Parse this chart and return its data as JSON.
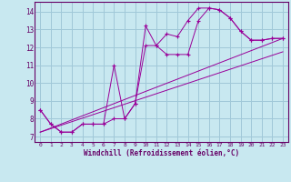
{
  "bg_color": "#c8e8f0",
  "grid_color": "#a0c8d8",
  "line_color": "#990099",
  "xlabel": "Windchill (Refroidissement éolien,°C)",
  "yticks": [
    7,
    8,
    9,
    10,
    11,
    12,
    13,
    14
  ],
  "xticks": [
    0,
    1,
    2,
    3,
    4,
    5,
    6,
    7,
    8,
    9,
    10,
    11,
    12,
    13,
    14,
    15,
    16,
    17,
    18,
    19,
    20,
    21,
    22,
    23
  ],
  "xlim": [
    -0.5,
    23.5
  ],
  "ylim": [
    6.7,
    14.55
  ],
  "lines_with_markers": [
    {
      "x": [
        0,
        1,
        2,
        3,
        4,
        5,
        6,
        7,
        8,
        9,
        10,
        11,
        12,
        13,
        14,
        15,
        16,
        17,
        18,
        19,
        20,
        21,
        22,
        23
      ],
      "y": [
        8.5,
        7.7,
        7.25,
        7.25,
        7.7,
        7.7,
        7.7,
        11.0,
        8.0,
        8.85,
        13.2,
        12.1,
        12.75,
        12.6,
        13.5,
        14.2,
        14.2,
        14.1,
        13.65,
        12.9,
        12.4,
        12.4,
        12.5,
        12.5
      ]
    },
    {
      "x": [
        0,
        1,
        2,
        3,
        4,
        5,
        6,
        7,
        8,
        9,
        10,
        11,
        12,
        13,
        14,
        15,
        16,
        17,
        18,
        19,
        20,
        21,
        22,
        23
      ],
      "y": [
        8.5,
        7.7,
        7.25,
        7.25,
        7.7,
        7.7,
        7.7,
        8.0,
        8.0,
        8.85,
        12.1,
        12.1,
        11.6,
        11.6,
        11.6,
        13.5,
        14.2,
        14.1,
        13.65,
        12.9,
        12.4,
        12.4,
        12.5,
        12.5
      ]
    }
  ],
  "lines_straight": [
    {
      "x": [
        0,
        23
      ],
      "y": [
        7.25,
        12.5
      ]
    },
    {
      "x": [
        0,
        23
      ],
      "y": [
        7.25,
        11.75
      ]
    }
  ]
}
